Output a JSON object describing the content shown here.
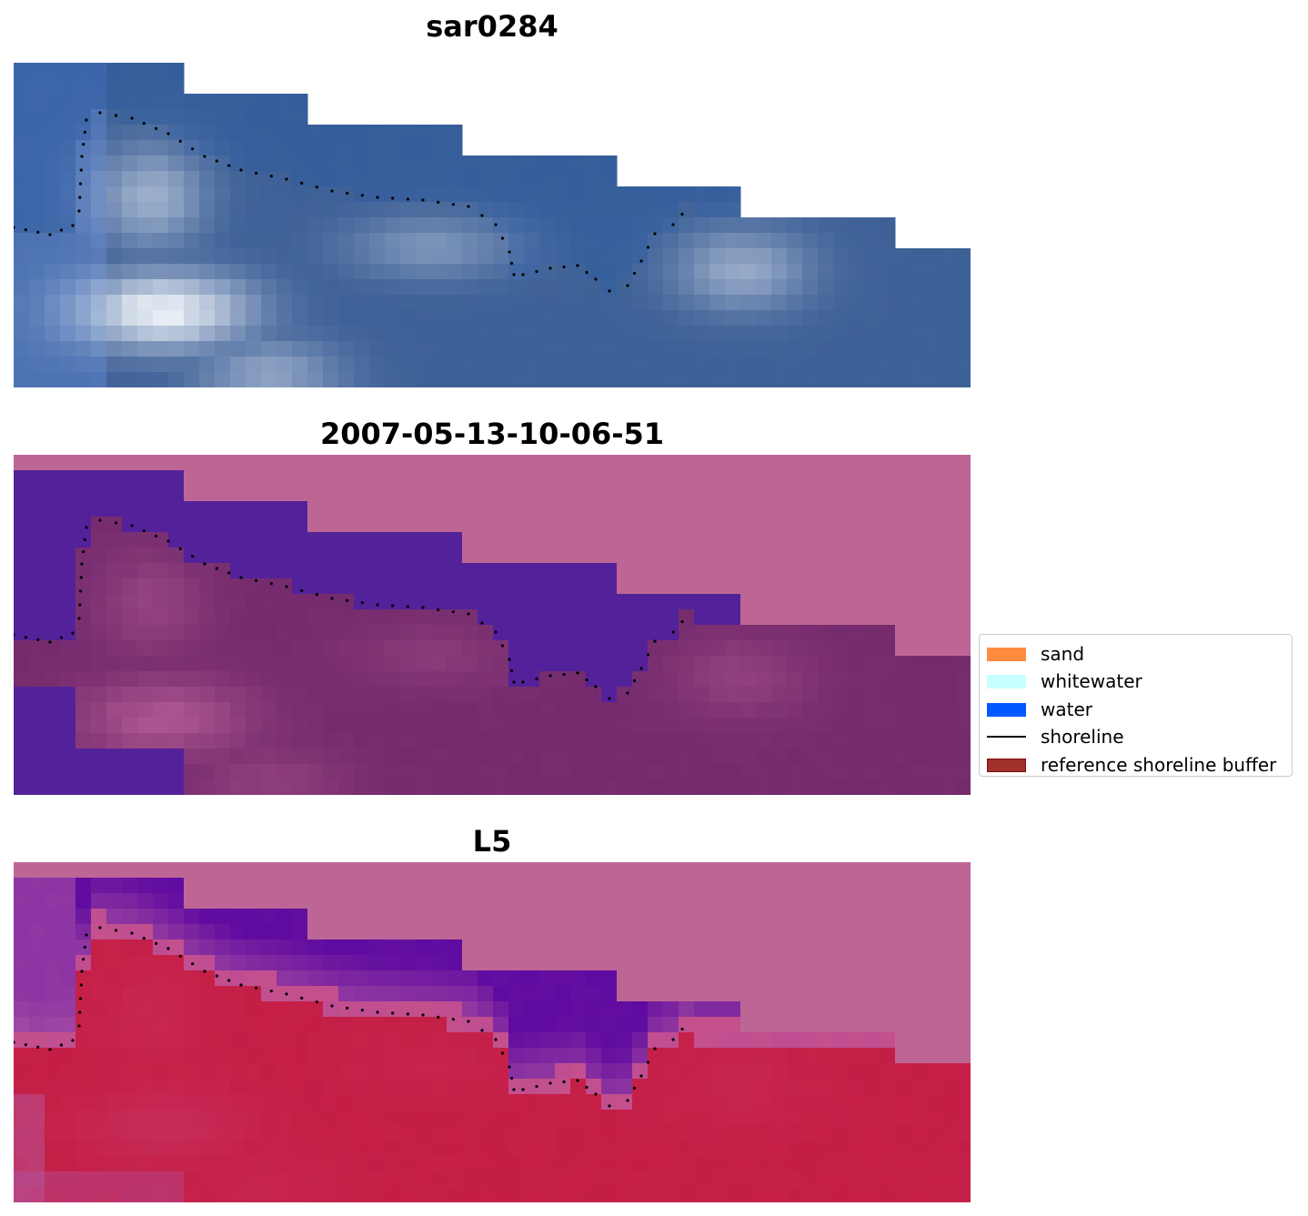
{
  "panels": [
    {
      "title": "sar0284",
      "palette": "rgb"
    },
    {
      "title": "2007-05-13-10-06-51",
      "palette": "classified"
    },
    {
      "title": "L5",
      "palette": "index"
    }
  ],
  "legend": {
    "entries": [
      {
        "label": "sand",
        "kind": "patch",
        "color": "#ff8c3c",
        "edge": "#ff8c3c"
      },
      {
        "label": "whitewater",
        "kind": "patch",
        "color": "#c8ffff",
        "edge": "#c8ffff"
      },
      {
        "label": "water",
        "kind": "patch",
        "color": "#005aff",
        "edge": "#005aff"
      },
      {
        "label": "shoreline",
        "kind": "line",
        "color": "#000000"
      },
      {
        "label": "reference shoreline buffer",
        "kind": "patch",
        "color": "#a0302a",
        "edge": "#7a1010"
      }
    ]
  },
  "colors": {
    "background": "#ffffff",
    "buffer_magenta": "#bd6695",
    "water_purple": "#53229a",
    "shoreline_dots": "#000000"
  }
}
